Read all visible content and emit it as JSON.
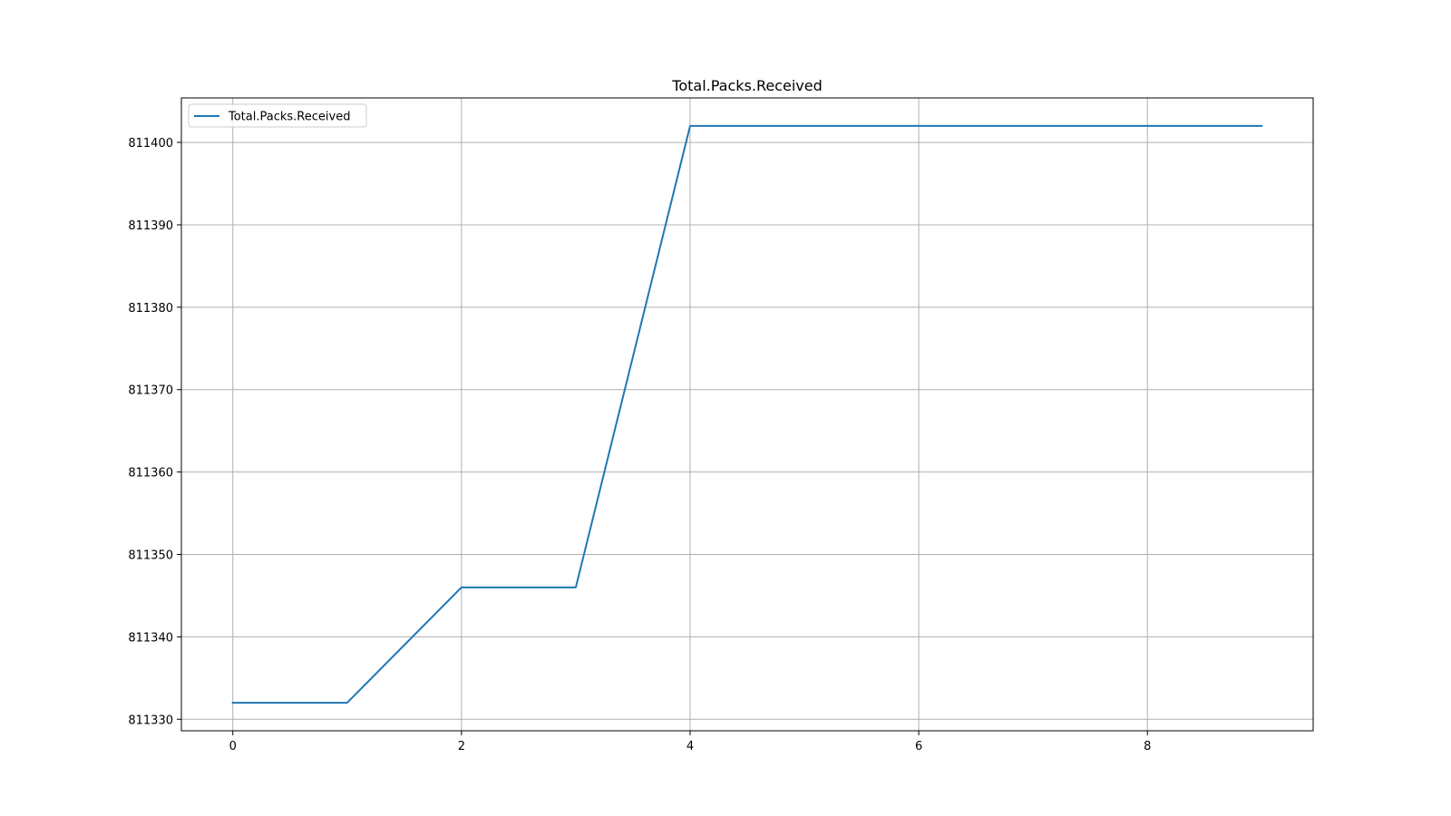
{
  "chart_data": {
    "type": "line",
    "title": "Total.Packs.Received",
    "xlabel": "",
    "ylabel": "",
    "x": [
      0,
      1,
      2,
      3,
      4,
      5,
      6,
      7,
      8,
      9
    ],
    "series": [
      {
        "name": "Total.Packs.Received",
        "color": "#1f77b4",
        "values": [
          811332,
          811332,
          811346,
          811346,
          811402,
          811402,
          811402,
          811402,
          811402,
          811402
        ]
      }
    ],
    "xlim": [
      -0.45,
      9.45
    ],
    "ylim": [
      811328.6,
      811405.4
    ],
    "xticks": [
      0,
      2,
      4,
      6,
      8
    ],
    "yticks": [
      811330,
      811340,
      811350,
      811360,
      811370,
      811380,
      811390,
      811400
    ],
    "grid": true,
    "legend_position": "upper-left"
  }
}
